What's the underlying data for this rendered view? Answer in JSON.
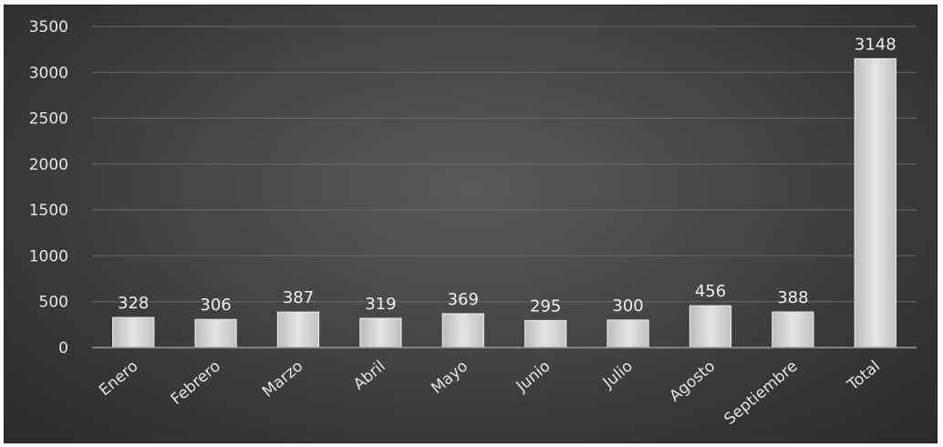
{
  "chart_data": {
    "type": "bar",
    "title": "",
    "xlabel": "",
    "ylabel": "",
    "categories": [
      "Enero",
      "Febrero",
      "Marzo",
      "Abril",
      "Mayo",
      "Junio",
      "Julio",
      "Agosto",
      "Septiembre",
      "Total"
    ],
    "values": [
      328,
      306,
      387,
      319,
      369,
      295,
      300,
      456,
      388,
      3148
    ],
    "data_labels": [
      "328",
      "306",
      "387",
      "319",
      "369",
      "295",
      "300",
      "456",
      "388",
      "3148"
    ],
    "ylim": [
      0,
      3500
    ],
    "yticks": [
      0,
      500,
      1000,
      1500,
      2000,
      2500,
      3000,
      3500
    ],
    "ytick_labels": [
      "0",
      "500",
      "1000",
      "1500",
      "2000",
      "2500",
      "3000",
      "3500"
    ],
    "grid": true,
    "legend": "none",
    "colors": {
      "bar": "#d0d0d0",
      "bar_edge": "#f2f2f2",
      "background": "#3c3c3c",
      "text": "#e6e6e6",
      "grid": "#6a6a6a"
    }
  }
}
